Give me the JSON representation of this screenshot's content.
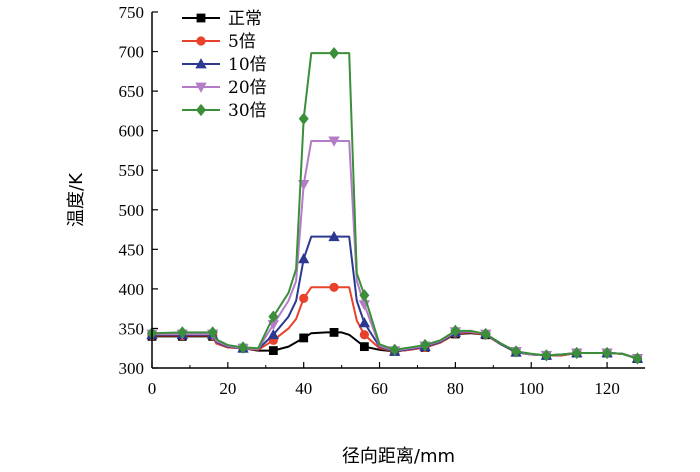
{
  "chart_data": {
    "type": "line",
    "xlabel": "径向距离/mm",
    "ylabel": "温度/K",
    "xlim": [
      0,
      130
    ],
    "ylim": [
      300,
      750
    ],
    "xticks": [
      0,
      20,
      40,
      60,
      80,
      100,
      120
    ],
    "yticks": [
      300,
      350,
      400,
      450,
      500,
      550,
      600,
      650,
      700,
      750
    ],
    "x_tick_labels": [
      "0",
      "20",
      "40",
      "60",
      "80",
      "100",
      "120"
    ],
    "y_tick_labels": [
      "300",
      "350",
      "400",
      "450",
      "500",
      "550",
      "600",
      "650",
      "700",
      "750"
    ],
    "grid": false,
    "legend_position": "top-left",
    "series": [
      {
        "name": "正常",
        "color": "#000000",
        "marker": "square",
        "points": [
          [
            0,
            340
          ],
          [
            8,
            340
          ],
          [
            16,
            340
          ],
          [
            17,
            331
          ],
          [
            20,
            326
          ],
          [
            24,
            325
          ],
          [
            28,
            322
          ],
          [
            32,
            322
          ],
          [
            36,
            327
          ],
          [
            40,
            338
          ],
          [
            42,
            344
          ],
          [
            46,
            345
          ],
          [
            48,
            345
          ],
          [
            50,
            345
          ],
          [
            52,
            342
          ],
          [
            56,
            327
          ],
          [
            60,
            323
          ],
          [
            64,
            321
          ],
          [
            68,
            323
          ],
          [
            72,
            326
          ],
          [
            76,
            332
          ],
          [
            80,
            343
          ],
          [
            84,
            344
          ],
          [
            88,
            342
          ],
          [
            92,
            330
          ],
          [
            96,
            320
          ],
          [
            100,
            317
          ],
          [
            104,
            316
          ],
          [
            108,
            316
          ],
          [
            112,
            319
          ],
          [
            116,
            319
          ],
          [
            120,
            319
          ],
          [
            124,
            318
          ],
          [
            128,
            312
          ]
        ],
        "marker_x": [
          0,
          8,
          16,
          24,
          32,
          40,
          48,
          56,
          64,
          72,
          80,
          88,
          96,
          104,
          112,
          120,
          128
        ]
      },
      {
        "name": "5倍",
        "color": "#e8412c",
        "marker": "circle",
        "points": [
          [
            0,
            341
          ],
          [
            8,
            341
          ],
          [
            16,
            341
          ],
          [
            17,
            331
          ],
          [
            20,
            326
          ],
          [
            24,
            325
          ],
          [
            28,
            323
          ],
          [
            32,
            335
          ],
          [
            36,
            350
          ],
          [
            38,
            362
          ],
          [
            40,
            388
          ],
          [
            42,
            402
          ],
          [
            46,
            402
          ],
          [
            48,
            402
          ],
          [
            50,
            402
          ],
          [
            52,
            402
          ],
          [
            54,
            360
          ],
          [
            56,
            342
          ],
          [
            60,
            325
          ],
          [
            64,
            321
          ],
          [
            68,
            323
          ],
          [
            72,
            326
          ],
          [
            76,
            332
          ],
          [
            80,
            344
          ],
          [
            84,
            345
          ],
          [
            88,
            342
          ],
          [
            92,
            330
          ],
          [
            96,
            320
          ],
          [
            100,
            317
          ],
          [
            104,
            316
          ],
          [
            108,
            316
          ],
          [
            112,
            319
          ],
          [
            116,
            319
          ],
          [
            120,
            319
          ],
          [
            124,
            318
          ],
          [
            128,
            312
          ]
        ],
        "marker_x": [
          0,
          8,
          16,
          24,
          32,
          40,
          48,
          56,
          64,
          72,
          80,
          88,
          96,
          104,
          112,
          120,
          128
        ]
      },
      {
        "name": "10倍",
        "color": "#2b3990",
        "marker": "triangle-up",
        "points": [
          [
            0,
            342
          ],
          [
            8,
            342
          ],
          [
            16,
            342
          ],
          [
            17,
            333
          ],
          [
            20,
            327
          ],
          [
            24,
            325
          ],
          [
            28,
            324
          ],
          [
            32,
            342
          ],
          [
            36,
            365
          ],
          [
            38,
            385
          ],
          [
            40,
            438
          ],
          [
            42,
            466
          ],
          [
            46,
            466
          ],
          [
            48,
            466
          ],
          [
            50,
            466
          ],
          [
            52,
            466
          ],
          [
            54,
            385
          ],
          [
            56,
            357
          ],
          [
            60,
            327
          ],
          [
            64,
            321
          ],
          [
            68,
            324
          ],
          [
            72,
            327
          ],
          [
            76,
            333
          ],
          [
            80,
            345
          ],
          [
            84,
            346
          ],
          [
            88,
            343
          ],
          [
            92,
            330
          ],
          [
            96,
            320
          ],
          [
            100,
            317
          ],
          [
            104,
            316
          ],
          [
            108,
            317
          ],
          [
            112,
            319
          ],
          [
            116,
            319
          ],
          [
            120,
            319
          ],
          [
            124,
            318
          ],
          [
            128,
            312
          ]
        ],
        "marker_x": [
          0,
          8,
          16,
          24,
          32,
          40,
          48,
          56,
          64,
          72,
          80,
          88,
          96,
          104,
          112,
          120,
          128
        ]
      },
      {
        "name": "20倍",
        "color": "#b47cc7",
        "marker": "triangle-down",
        "points": [
          [
            0,
            343
          ],
          [
            8,
            343
          ],
          [
            16,
            343
          ],
          [
            17,
            334
          ],
          [
            20,
            328
          ],
          [
            24,
            325
          ],
          [
            28,
            324
          ],
          [
            32,
            355
          ],
          [
            36,
            385
          ],
          [
            38,
            410
          ],
          [
            40,
            532
          ],
          [
            42,
            587
          ],
          [
            46,
            587
          ],
          [
            48,
            587
          ],
          [
            50,
            587
          ],
          [
            52,
            587
          ],
          [
            54,
            410
          ],
          [
            56,
            380
          ],
          [
            60,
            328
          ],
          [
            64,
            322
          ],
          [
            68,
            325
          ],
          [
            72,
            328
          ],
          [
            76,
            334
          ],
          [
            80,
            346
          ],
          [
            84,
            346
          ],
          [
            88,
            343
          ],
          [
            92,
            331
          ],
          [
            96,
            321
          ],
          [
            100,
            317
          ],
          [
            104,
            316
          ],
          [
            108,
            317
          ],
          [
            112,
            319
          ],
          [
            116,
            319
          ],
          [
            120,
            319
          ],
          [
            124,
            318
          ],
          [
            128,
            312
          ]
        ],
        "marker_x": [
          0,
          8,
          16,
          24,
          32,
          40,
          48,
          56,
          64,
          72,
          80,
          88,
          96,
          104,
          112,
          120,
          128
        ]
      },
      {
        "name": "30倍",
        "color": "#3b8f3a",
        "marker": "diamond",
        "points": [
          [
            0,
            344
          ],
          [
            8,
            345
          ],
          [
            16,
            345
          ],
          [
            17,
            336
          ],
          [
            20,
            329
          ],
          [
            24,
            326
          ],
          [
            28,
            325
          ],
          [
            32,
            365
          ],
          [
            36,
            395
          ],
          [
            38,
            425
          ],
          [
            40,
            615
          ],
          [
            42,
            698
          ],
          [
            46,
            698
          ],
          [
            48,
            698
          ],
          [
            50,
            698
          ],
          [
            52,
            698
          ],
          [
            54,
            420
          ],
          [
            56,
            392
          ],
          [
            60,
            330
          ],
          [
            64,
            323
          ],
          [
            68,
            326
          ],
          [
            72,
            329
          ],
          [
            76,
            335
          ],
          [
            80,
            347
          ],
          [
            84,
            347
          ],
          [
            88,
            343
          ],
          [
            92,
            331
          ],
          [
            96,
            321
          ],
          [
            100,
            318
          ],
          [
            104,
            316
          ],
          [
            108,
            317
          ],
          [
            112,
            319
          ],
          [
            116,
            319
          ],
          [
            120,
            319
          ],
          [
            124,
            318
          ],
          [
            128,
            312
          ]
        ],
        "marker_x": [
          0,
          8,
          16,
          24,
          32,
          40,
          48,
          56,
          64,
          72,
          80,
          88,
          96,
          104,
          112,
          120,
          128
        ]
      }
    ]
  }
}
